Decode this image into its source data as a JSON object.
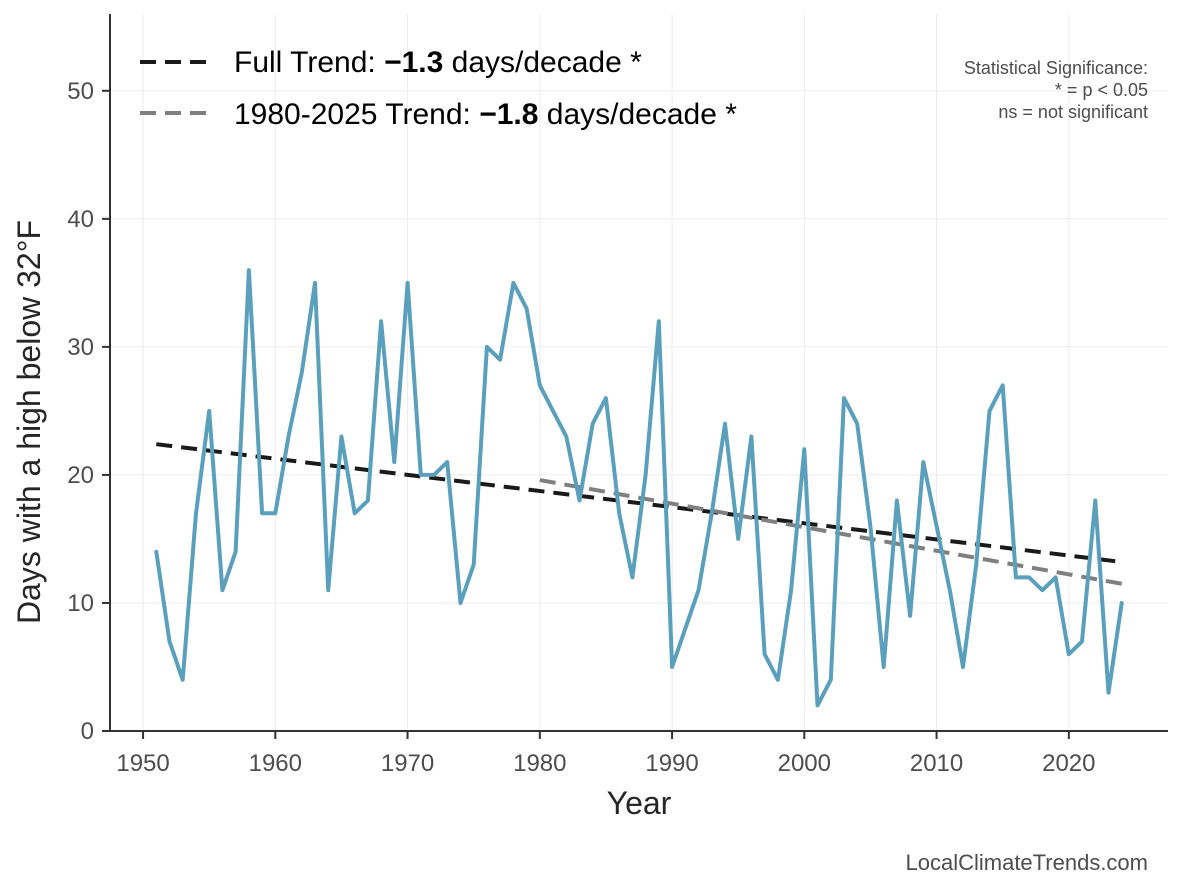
{
  "chart_data": {
    "type": "line",
    "title": "",
    "xlabel": "Year",
    "ylabel": "Days with a high below 32°F",
    "xlim": [
      1947.5,
      2027.5
    ],
    "ylim": [
      0,
      56
    ],
    "xticks": [
      1950,
      1960,
      1970,
      1980,
      1990,
      2000,
      2010,
      2020
    ],
    "yticks": [
      0,
      10,
      20,
      30,
      40,
      50
    ],
    "grid": true,
    "legend_position": "top-left",
    "colors": {
      "series": "#5aa0bd",
      "full_trend": "#1a1a1a",
      "recent_trend": "#7f7f7f"
    },
    "series": [
      {
        "x": [
          1951,
          1952,
          1953,
          1954,
          1955,
          1956,
          1957,
          1958,
          1959,
          1960,
          1961,
          1962,
          1963,
          1964,
          1965,
          1966,
          1967,
          1968,
          1969,
          1970,
          1971,
          1972,
          1973,
          1974,
          1975,
          1976,
          1977,
          1978,
          1979,
          1980,
          1981,
          1982,
          1983,
          1984,
          1985,
          1986,
          1987,
          1988,
          1989,
          1990,
          1991,
          1992,
          1993,
          1994,
          1995,
          1996,
          1997,
          1998,
          1999,
          2000,
          2001,
          2002,
          2003,
          2004,
          2005,
          2006,
          2007,
          2008,
          2009,
          2010,
          2011,
          2012,
          2013,
          2014,
          2015,
          2016,
          2017,
          2018,
          2019,
          2020,
          2021,
          2022,
          2023,
          2024
        ],
        "values": [
          14,
          7,
          4,
          17,
          25,
          11,
          14,
          36,
          17,
          17,
          23,
          28,
          35,
          11,
          23,
          17,
          18,
          32,
          21,
          35,
          20,
          20,
          21,
          10,
          13,
          30,
          29,
          35,
          33,
          27,
          25,
          23,
          18,
          24,
          26,
          17,
          12,
          20,
          32,
          5,
          8,
          11,
          17,
          24,
          15,
          23,
          6,
          4,
          11,
          22,
          2,
          4,
          26,
          24,
          16,
          5,
          18,
          9,
          21,
          16,
          11,
          5,
          13,
          25,
          27,
          12,
          12,
          11,
          12,
          6,
          7,
          18,
          3,
          10
        ]
      }
    ],
    "trends": [
      {
        "label_prefix": "Full Trend: ",
        "label_value": "−1.3",
        "label_suffix": " days/decade *",
        "x": [
          1951,
          2024
        ],
        "y": [
          22.4,
          13.2
        ]
      },
      {
        "label_prefix": "1980-2025 Trend: ",
        "label_value": "−1.8",
        "label_suffix": " days/decade *",
        "x": [
          1980,
          2024
        ],
        "y": [
          19.6,
          11.5
        ]
      }
    ],
    "annotation": [
      "Statistical Significance:",
      "* = p < 0.05",
      "ns = not significant"
    ],
    "credit": "LocalClimateTrends.com"
  }
}
